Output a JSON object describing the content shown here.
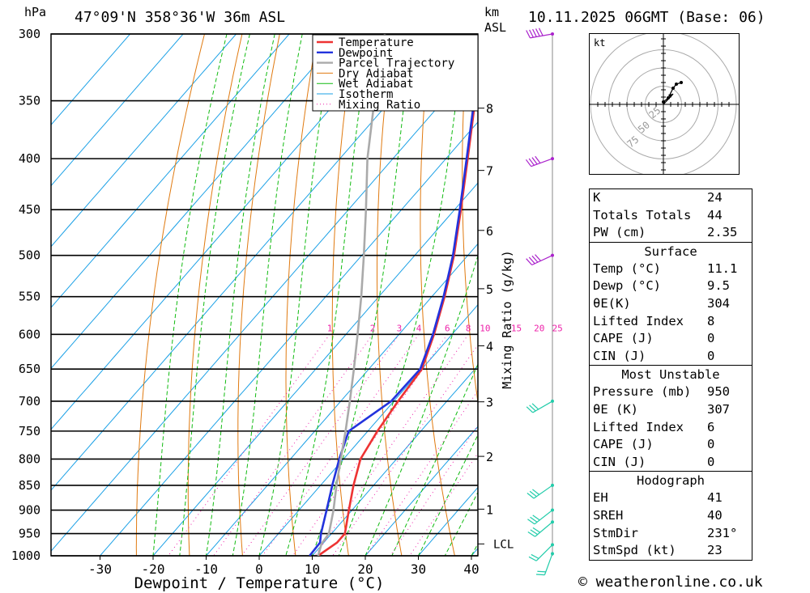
{
  "header": {
    "hpa_unit": "hPa",
    "location": "47°09'N  358°36'W  36m  ASL",
    "km_unit": "km",
    "asl_unit": "ASL",
    "datetime": "10.11.2025 06GMT (Base: 06)"
  },
  "colors": {
    "temperature": "#ee3333",
    "dewpoint": "#2233dd",
    "parcel": "#aaaaaa",
    "dry_adiabat": "#e07a10",
    "wet_adiabat": "#11bb11",
    "isotherm": "#1aa0e6",
    "mixing_ratio": "#ee22aa",
    "wind": "#aa22cc",
    "wind_low": "#22ccaa"
  },
  "chart_data": {
    "type": "line",
    "title": "Skew-T log-P diagram",
    "xlabel": "Dewpoint / Temperature (°C)",
    "ylabel": "hPa",
    "xlim": [
      -40,
      40
    ],
    "ylim": [
      1000,
      300
    ],
    "x_ticks": [
      -30,
      -20,
      -10,
      0,
      10,
      20,
      30,
      40
    ],
    "pressure_levels": [
      300,
      350,
      400,
      450,
      500,
      550,
      600,
      650,
      700,
      750,
      800,
      850,
      900,
      950,
      1000
    ],
    "km_levels": [
      {
        "label": "8",
        "p": 356
      },
      {
        "label": "7",
        "p": 411
      },
      {
        "label": "6",
        "p": 472
      },
      {
        "label": "5",
        "p": 540
      },
      {
        "label": "4",
        "p": 616
      },
      {
        "label": "3",
        "p": 701
      },
      {
        "label": "2",
        "p": 795
      },
      {
        "label": "1",
        "p": 898
      }
    ],
    "lcl_label": "LCL",
    "lcl_p": 973,
    "mixing_ratio_label": "Mixing Ratio (g/kg)",
    "mixing_ratios": [
      1,
      2,
      3,
      4,
      6,
      8,
      10,
      15,
      20,
      25
    ],
    "mixing_label_p": 600,
    "legend": [
      "Temperature",
      "Dewpoint",
      "Parcel Trajectory",
      "Dry Adiabat",
      "Wet Adiabat",
      "Isotherm",
      "Mixing Ratio"
    ],
    "series": [
      {
        "name": "Temperature",
        "points": [
          [
            1000,
            11.1
          ],
          [
            970,
            12.5
          ],
          [
            950,
            12.5
          ],
          [
            900,
            9.4
          ],
          [
            850,
            6.2
          ],
          [
            800,
            3.2
          ],
          [
            750,
            1.8
          ],
          [
            700,
            0.8
          ],
          [
            650,
            0.0
          ],
          [
            600,
            -3.4
          ],
          [
            550,
            -7.6
          ],
          [
            500,
            -12.6
          ],
          [
            450,
            -18.8
          ],
          [
            400,
            -25.9
          ],
          [
            350,
            -34.0
          ],
          [
            300,
            -43.6
          ]
        ]
      },
      {
        "name": "Dewpoint",
        "points": [
          [
            1000,
            9.5
          ],
          [
            970,
            9.3
          ],
          [
            950,
            8.0
          ],
          [
            900,
            5.2
          ],
          [
            850,
            2.2
          ],
          [
            800,
            -0.8
          ],
          [
            750,
            -3.6
          ],
          [
            700,
            -0.5
          ],
          [
            650,
            -0.3
          ],
          [
            600,
            -3.6
          ],
          [
            550,
            -7.8
          ],
          [
            500,
            -12.8
          ],
          [
            450,
            -19.0
          ],
          [
            400,
            -26.1
          ],
          [
            350,
            -34.2
          ],
          [
            300,
            -43.8
          ]
        ]
      },
      {
        "name": "Parcel Trajectory",
        "points": [
          [
            1000,
            11.1
          ],
          [
            973,
            9.8
          ],
          [
            950,
            9.5
          ],
          [
            900,
            6.5
          ],
          [
            850,
            3.0
          ],
          [
            800,
            -0.5
          ],
          [
            750,
            -4.2
          ],
          [
            700,
            -8.3
          ],
          [
            650,
            -12.8
          ],
          [
            600,
            -17.8
          ],
          [
            550,
            -23.3
          ],
          [
            500,
            -29.6
          ],
          [
            450,
            -36.7
          ],
          [
            400,
            -44.8
          ],
          [
            350,
            -53.0
          ],
          [
            300,
            -62.0
          ]
        ]
      }
    ],
    "winds": [
      {
        "p": 300,
        "dir": 260,
        "spd": 50
      },
      {
        "p": 400,
        "dir": 250,
        "spd": 40
      },
      {
        "p": 500,
        "dir": 245,
        "spd": 40
      },
      {
        "p": 700,
        "dir": 240,
        "spd": 30
      },
      {
        "p": 850,
        "dir": 235,
        "spd": 25
      },
      {
        "p": 900,
        "dir": 232,
        "spd": 25
      },
      {
        "p": 925,
        "dir": 230,
        "spd": 25
      },
      {
        "p": 975,
        "dir": 225,
        "spd": 20
      },
      {
        "p": 995,
        "dir": 200,
        "spd": 20
      }
    ]
  },
  "hodograph": {
    "unit": "kt",
    "ring_labels": [
      "25",
      "50",
      "75"
    ],
    "trace": [
      [
        0,
        3
      ],
      [
        6,
        8
      ],
      [
        12,
        20
      ],
      [
        16,
        25
      ],
      [
        22,
        27
      ]
    ],
    "storm_motion": [
      12,
      13
    ]
  },
  "indices": {
    "top": [
      {
        "label": "K",
        "value": "24"
      },
      {
        "label": "Totals Totals",
        "value": "44"
      },
      {
        "label": "PW (cm)",
        "value": "2.35"
      }
    ],
    "surface": {
      "title": "Surface",
      "rows": [
        {
          "label": "Temp (°C)",
          "value": "11.1"
        },
        {
          "label": "Dewp (°C)",
          "value": "9.5"
        },
        {
          "label": "θE(K)",
          "value": "304"
        },
        {
          "label": "Lifted Index",
          "value": "8"
        },
        {
          "label": "CAPE (J)",
          "value": "0"
        },
        {
          "label": "CIN (J)",
          "value": "0"
        }
      ]
    },
    "most_unstable": {
      "title": "Most Unstable",
      "rows": [
        {
          "label": "Pressure (mb)",
          "value": "950"
        },
        {
          "label": "θE (K)",
          "value": "307"
        },
        {
          "label": "Lifted Index",
          "value": "6"
        },
        {
          "label": "CAPE (J)",
          "value": "0"
        },
        {
          "label": "CIN (J)",
          "value": "0"
        }
      ]
    },
    "hodograph": {
      "title": "Hodograph",
      "rows": [
        {
          "label": "EH",
          "value": "41"
        },
        {
          "label": "SREH",
          "value": "40"
        },
        {
          "label": "StmDir",
          "value": "231°"
        },
        {
          "label": "StmSpd (kt)",
          "value": "23"
        }
      ]
    }
  },
  "copyright": "© weatheronline.co.uk"
}
